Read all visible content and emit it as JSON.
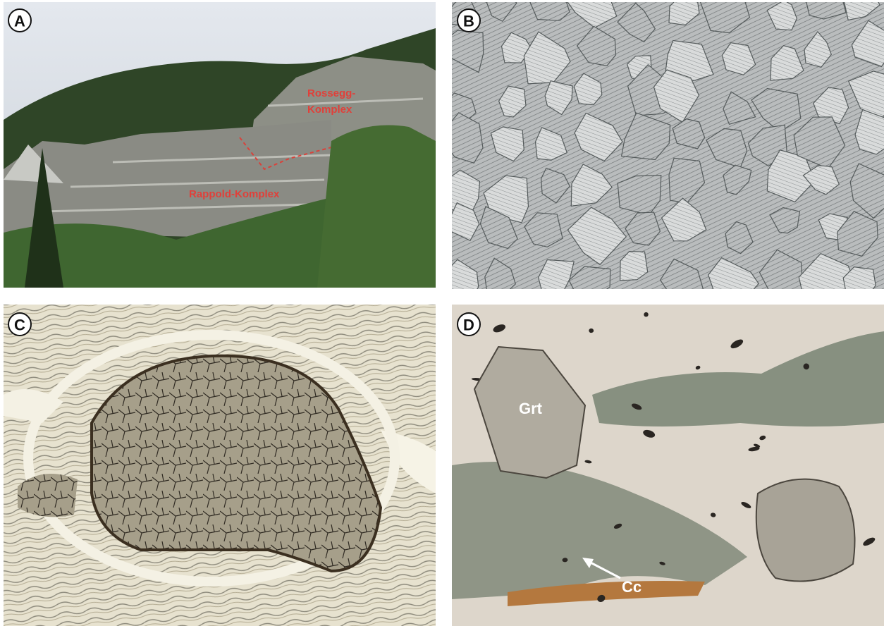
{
  "panels": [
    {
      "label": "A",
      "annotations": [
        "Rossegg-",
        "Komplex",
        "Rappold-Komplex"
      ]
    },
    {
      "label": "B"
    },
    {
      "label": "C"
    },
    {
      "label": "D",
      "annotations": [
        "Grt",
        "Cc"
      ]
    }
  ]
}
